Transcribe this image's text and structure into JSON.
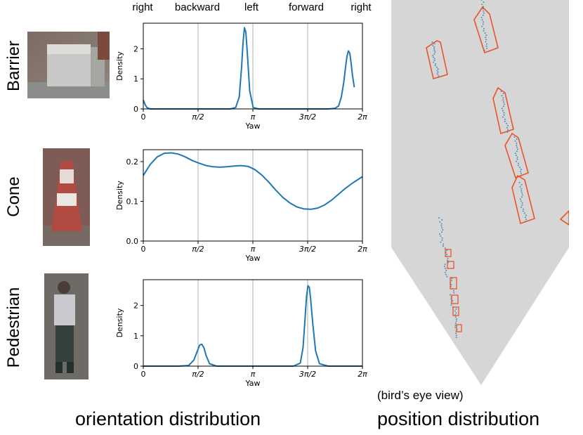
{
  "header": {
    "directions": [
      "right",
      "backward",
      "left",
      "forward",
      "right"
    ]
  },
  "rows": [
    {
      "category": "Barrier"
    },
    {
      "category": "Cone"
    },
    {
      "category": "Pedestrian"
    }
  ],
  "footer": {
    "left_caption": "orientation distribution",
    "right_caption": "position distribution",
    "bev_caption": "(bird’s eye view)"
  },
  "colors": {
    "curve": "#1f77b4",
    "box": "#e8542a",
    "bev_background": "#d6d6d6",
    "points": "#1f77b4"
  },
  "chart_data": [
    {
      "type": "line",
      "category": "Barrier",
      "xlabel": "Yaw",
      "ylabel": "Density",
      "xlim": [
        0,
        6.2832
      ],
      "ylim": [
        0,
        2.85
      ],
      "xtick_labels": [
        "0",
        "π/2",
        "π",
        "3π/2",
        "2π"
      ],
      "xtick_values": [
        0,
        1.5708,
        3.1416,
        4.7124,
        6.2832
      ],
      "ytick_labels": [
        "0",
        "1",
        "2"
      ],
      "ytick_values": [
        0,
        1,
        2
      ],
      "grid": "vertical",
      "x": [
        0.0,
        0.05,
        0.1,
        0.15,
        0.2,
        0.3,
        1.0,
        2.0,
        2.5,
        2.65,
        2.75,
        2.82,
        2.86,
        2.9,
        2.94,
        2.98,
        3.05,
        3.15,
        3.3,
        4.0,
        5.3,
        5.5,
        5.6,
        5.68,
        5.75,
        5.8,
        5.84,
        5.88,
        5.92,
        5.96,
        6.0,
        6.05
      ],
      "y": [
        0.3,
        0.15,
        0.05,
        0.02,
        0.0,
        0.0,
        0.0,
        0.0,
        0.0,
        0.05,
        0.4,
        1.4,
        2.2,
        2.7,
        2.55,
        1.9,
        0.6,
        0.05,
        0.0,
        0.0,
        0.0,
        0.02,
        0.1,
        0.4,
        0.9,
        1.4,
        1.75,
        1.93,
        1.85,
        1.5,
        1.1,
        0.72
      ]
    },
    {
      "type": "line",
      "category": "Cone",
      "xlabel": "Yaw",
      "ylabel": "Density",
      "xlim": [
        0,
        6.2832
      ],
      "ylim": [
        0,
        0.23
      ],
      "xtick_labels": [
        "0",
        "π/2",
        "π",
        "3π/2",
        "2π"
      ],
      "xtick_values": [
        0,
        1.5708,
        3.1416,
        4.7124,
        6.2832
      ],
      "ytick_labels": [
        "0.0",
        "0.1",
        "0.2"
      ],
      "ytick_values": [
        0,
        0.1,
        0.2
      ],
      "grid": "vertical",
      "x": [
        0.0,
        0.2,
        0.4,
        0.6,
        0.8,
        1.0,
        1.2,
        1.4,
        1.6,
        1.8,
        2.0,
        2.2,
        2.4,
        2.6,
        2.8,
        3.0,
        3.2,
        3.4,
        3.6,
        3.8,
        4.0,
        4.2,
        4.4,
        4.6,
        4.8,
        5.0,
        5.2,
        5.4,
        5.6,
        5.8,
        6.0,
        6.2832
      ],
      "y": [
        0.165,
        0.193,
        0.212,
        0.221,
        0.222,
        0.219,
        0.212,
        0.203,
        0.196,
        0.19,
        0.187,
        0.186,
        0.187,
        0.189,
        0.19,
        0.188,
        0.18,
        0.166,
        0.148,
        0.128,
        0.11,
        0.096,
        0.086,
        0.081,
        0.08,
        0.083,
        0.091,
        0.103,
        0.118,
        0.133,
        0.146,
        0.162
      ]
    },
    {
      "type": "line",
      "category": "Pedestrian",
      "xlabel": "Yaw",
      "ylabel": "Density",
      "xlim": [
        0,
        6.2832
      ],
      "ylim": [
        0,
        2.85
      ],
      "xtick_labels": [
        "0",
        "π/2",
        "π",
        "3π/2",
        "2π"
      ],
      "xtick_values": [
        0,
        1.5708,
        3.1416,
        4.7124,
        6.2832
      ],
      "ytick_labels": [
        "0",
        "1",
        "2"
      ],
      "ytick_values": [
        0,
        1,
        2
      ],
      "grid": "vertical",
      "x": [
        0.0,
        1.0,
        1.3,
        1.45,
        1.55,
        1.62,
        1.68,
        1.74,
        1.8,
        1.9,
        2.1,
        3.0,
        4.3,
        4.5,
        4.58,
        4.64,
        4.68,
        4.72,
        4.76,
        4.8,
        4.86,
        4.94,
        5.05,
        5.3,
        6.2832
      ],
      "y": [
        0.0,
        0.0,
        0.02,
        0.2,
        0.5,
        0.7,
        0.72,
        0.6,
        0.35,
        0.08,
        0.0,
        0.0,
        0.0,
        0.1,
        0.6,
        1.6,
        2.3,
        2.65,
        2.6,
        2.2,
        1.4,
        0.5,
        0.08,
        0.0,
        0.0
      ]
    }
  ]
}
